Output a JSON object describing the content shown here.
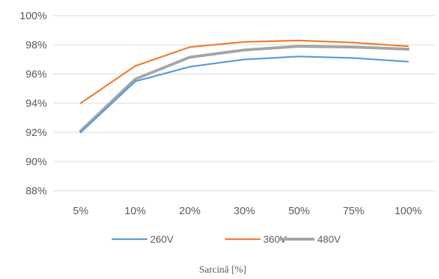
{
  "chart_data": {
    "type": "line",
    "categories": [
      "5%",
      "10%",
      "20%",
      "30%",
      "50%",
      "75%",
      "100%"
    ],
    "series": [
      {
        "name": "260V",
        "color": "#5b9bd5",
        "values": [
          92.0,
          95.5,
          96.5,
          97.0,
          97.2,
          97.1,
          96.85
        ]
      },
      {
        "name": "360V",
        "color": "#ed7d31",
        "values": [
          94.0,
          96.55,
          97.85,
          98.2,
          98.3,
          98.15,
          97.9
        ]
      },
      {
        "name": "480V",
        "color": "#a5a5a5",
        "values": [
          92.1,
          95.65,
          97.15,
          97.65,
          97.9,
          97.85,
          97.7
        ]
      }
    ],
    "ylim": [
      88,
      100
    ],
    "yticks": [
      "88%",
      "90%",
      "92%",
      "94%",
      "96%",
      "98%",
      "100%"
    ],
    "ytick_values": [
      88,
      90,
      92,
      94,
      96,
      98,
      100
    ],
    "grid": true,
    "legend_position": "bottom",
    "xlabel": "Sarcină [%]",
    "ylabel": "",
    "title": ""
  }
}
